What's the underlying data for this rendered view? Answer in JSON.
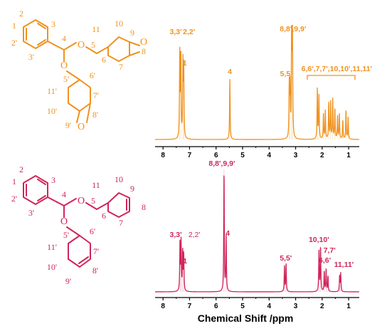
{
  "colors": {
    "top": "#F0921E",
    "bottom": "#D0255A",
    "axis": "#000000"
  },
  "molecules": [
    {
      "color": "#F0921E",
      "labels": [
        "1",
        "2",
        "3",
        "2'",
        "3'",
        "4",
        "5",
        "6",
        "7",
        "8",
        "9",
        "10",
        "11",
        "5'",
        "6'",
        "7'",
        "8'",
        "9'",
        "10'",
        "11'"
      ],
      "oxygens": [
        "O",
        "O",
        "O",
        "O"
      ]
    },
    {
      "color": "#D0255A",
      "labels": [
        "1",
        "2",
        "3",
        "2'",
        "3'",
        "4",
        "5",
        "6",
        "7",
        "8",
        "9",
        "10",
        "11",
        "5'",
        "6'",
        "7'",
        "8'",
        "9'",
        "10'",
        "11'"
      ],
      "oxygens": [
        "O",
        "O"
      ]
    }
  ],
  "chart_data": [
    {
      "type": "line",
      "xlim": [
        8.3,
        0.6
      ],
      "xticks": [
        8,
        7,
        6,
        5,
        4,
        3,
        2,
        1
      ],
      "xlabel": "",
      "peaks": [
        {
          "x": 7.37,
          "h": 0.74
        },
        {
          "x": 7.33,
          "h": 0.74
        },
        {
          "x": 7.25,
          "h": 0.64
        },
        {
          "x": 7.22,
          "h": 0.6
        },
        {
          "x": 5.48,
          "h": 0.53
        },
        {
          "x": 3.24,
          "h": 0.46
        },
        {
          "x": 3.21,
          "h": 0.44
        },
        {
          "x": 3.15,
          "h": 0.94
        },
        {
          "x": 3.12,
          "h": 0.98
        },
        {
          "x": 2.18,
          "h": 0.45
        },
        {
          "x": 2.12,
          "h": 0.38
        },
        {
          "x": 1.95,
          "h": 0.22
        },
        {
          "x": 1.88,
          "h": 0.25
        },
        {
          "x": 1.75,
          "h": 0.32
        },
        {
          "x": 1.68,
          "h": 0.33
        },
        {
          "x": 1.6,
          "h": 0.35
        },
        {
          "x": 1.52,
          "h": 0.27
        },
        {
          "x": 1.42,
          "h": 0.2
        },
        {
          "x": 1.35,
          "h": 0.22
        },
        {
          "x": 1.22,
          "h": 0.17
        },
        {
          "x": 1.1,
          "h": 0.26
        },
        {
          "x": 1.02,
          "h": 0.19
        }
      ],
      "annotations": [
        {
          "text": "3,3'",
          "x": 7.52
        },
        {
          "text": "2,2'",
          "x": 7.02
        },
        {
          "text": "1",
          "x": 7.18
        },
        {
          "text": "4",
          "x": 5.48
        },
        {
          "text": "5,5'",
          "x": 3.36
        },
        {
          "text": "8,8',9,9'",
          "x": 3.1
        },
        {
          "text": "6,6',7,7',10,10',11,11'",
          "x": 1.45
        }
      ]
    },
    {
      "type": "line",
      "xlim": [
        8.3,
        0.6
      ],
      "xticks": [
        8,
        7,
        6,
        5,
        4,
        3,
        2,
        1
      ],
      "xlabel": "Chemical Shift /ppm",
      "peaks": [
        {
          "x": 7.36,
          "h": 0.4
        },
        {
          "x": 7.32,
          "h": 0.4
        },
        {
          "x": 7.26,
          "h": 0.33
        },
        {
          "x": 7.22,
          "h": 0.3
        },
        {
          "x": 5.7,
          "h": 1.0
        },
        {
          "x": 5.62,
          "h": 0.45
        },
        {
          "x": 3.42,
          "h": 0.21
        },
        {
          "x": 3.36,
          "h": 0.23
        },
        {
          "x": 2.12,
          "h": 0.33
        },
        {
          "x": 2.06,
          "h": 0.37
        },
        {
          "x": 1.92,
          "h": 0.17
        },
        {
          "x": 1.85,
          "h": 0.19
        },
        {
          "x": 1.78,
          "h": 0.13
        },
        {
          "x": 1.34,
          "h": 0.13
        },
        {
          "x": 1.3,
          "h": 0.15
        }
      ],
      "annotations": [
        {
          "text": "8,8',9,9'",
          "x": 5.78
        },
        {
          "text": "4",
          "x": 5.56
        },
        {
          "text": "3,3'",
          "x": 7.52
        },
        {
          "text": "2,2'",
          "x": 6.82
        },
        {
          "text": "1",
          "x": 7.17
        },
        {
          "text": "5,5'",
          "x": 3.37
        },
        {
          "text": "10,10'",
          "x": 2.12
        },
        {
          "text": "7,7'",
          "x": 1.72
        },
        {
          "text": "6,6'",
          "x": 1.9
        },
        {
          "text": "11,11'",
          "x": 1.18
        }
      ]
    }
  ]
}
